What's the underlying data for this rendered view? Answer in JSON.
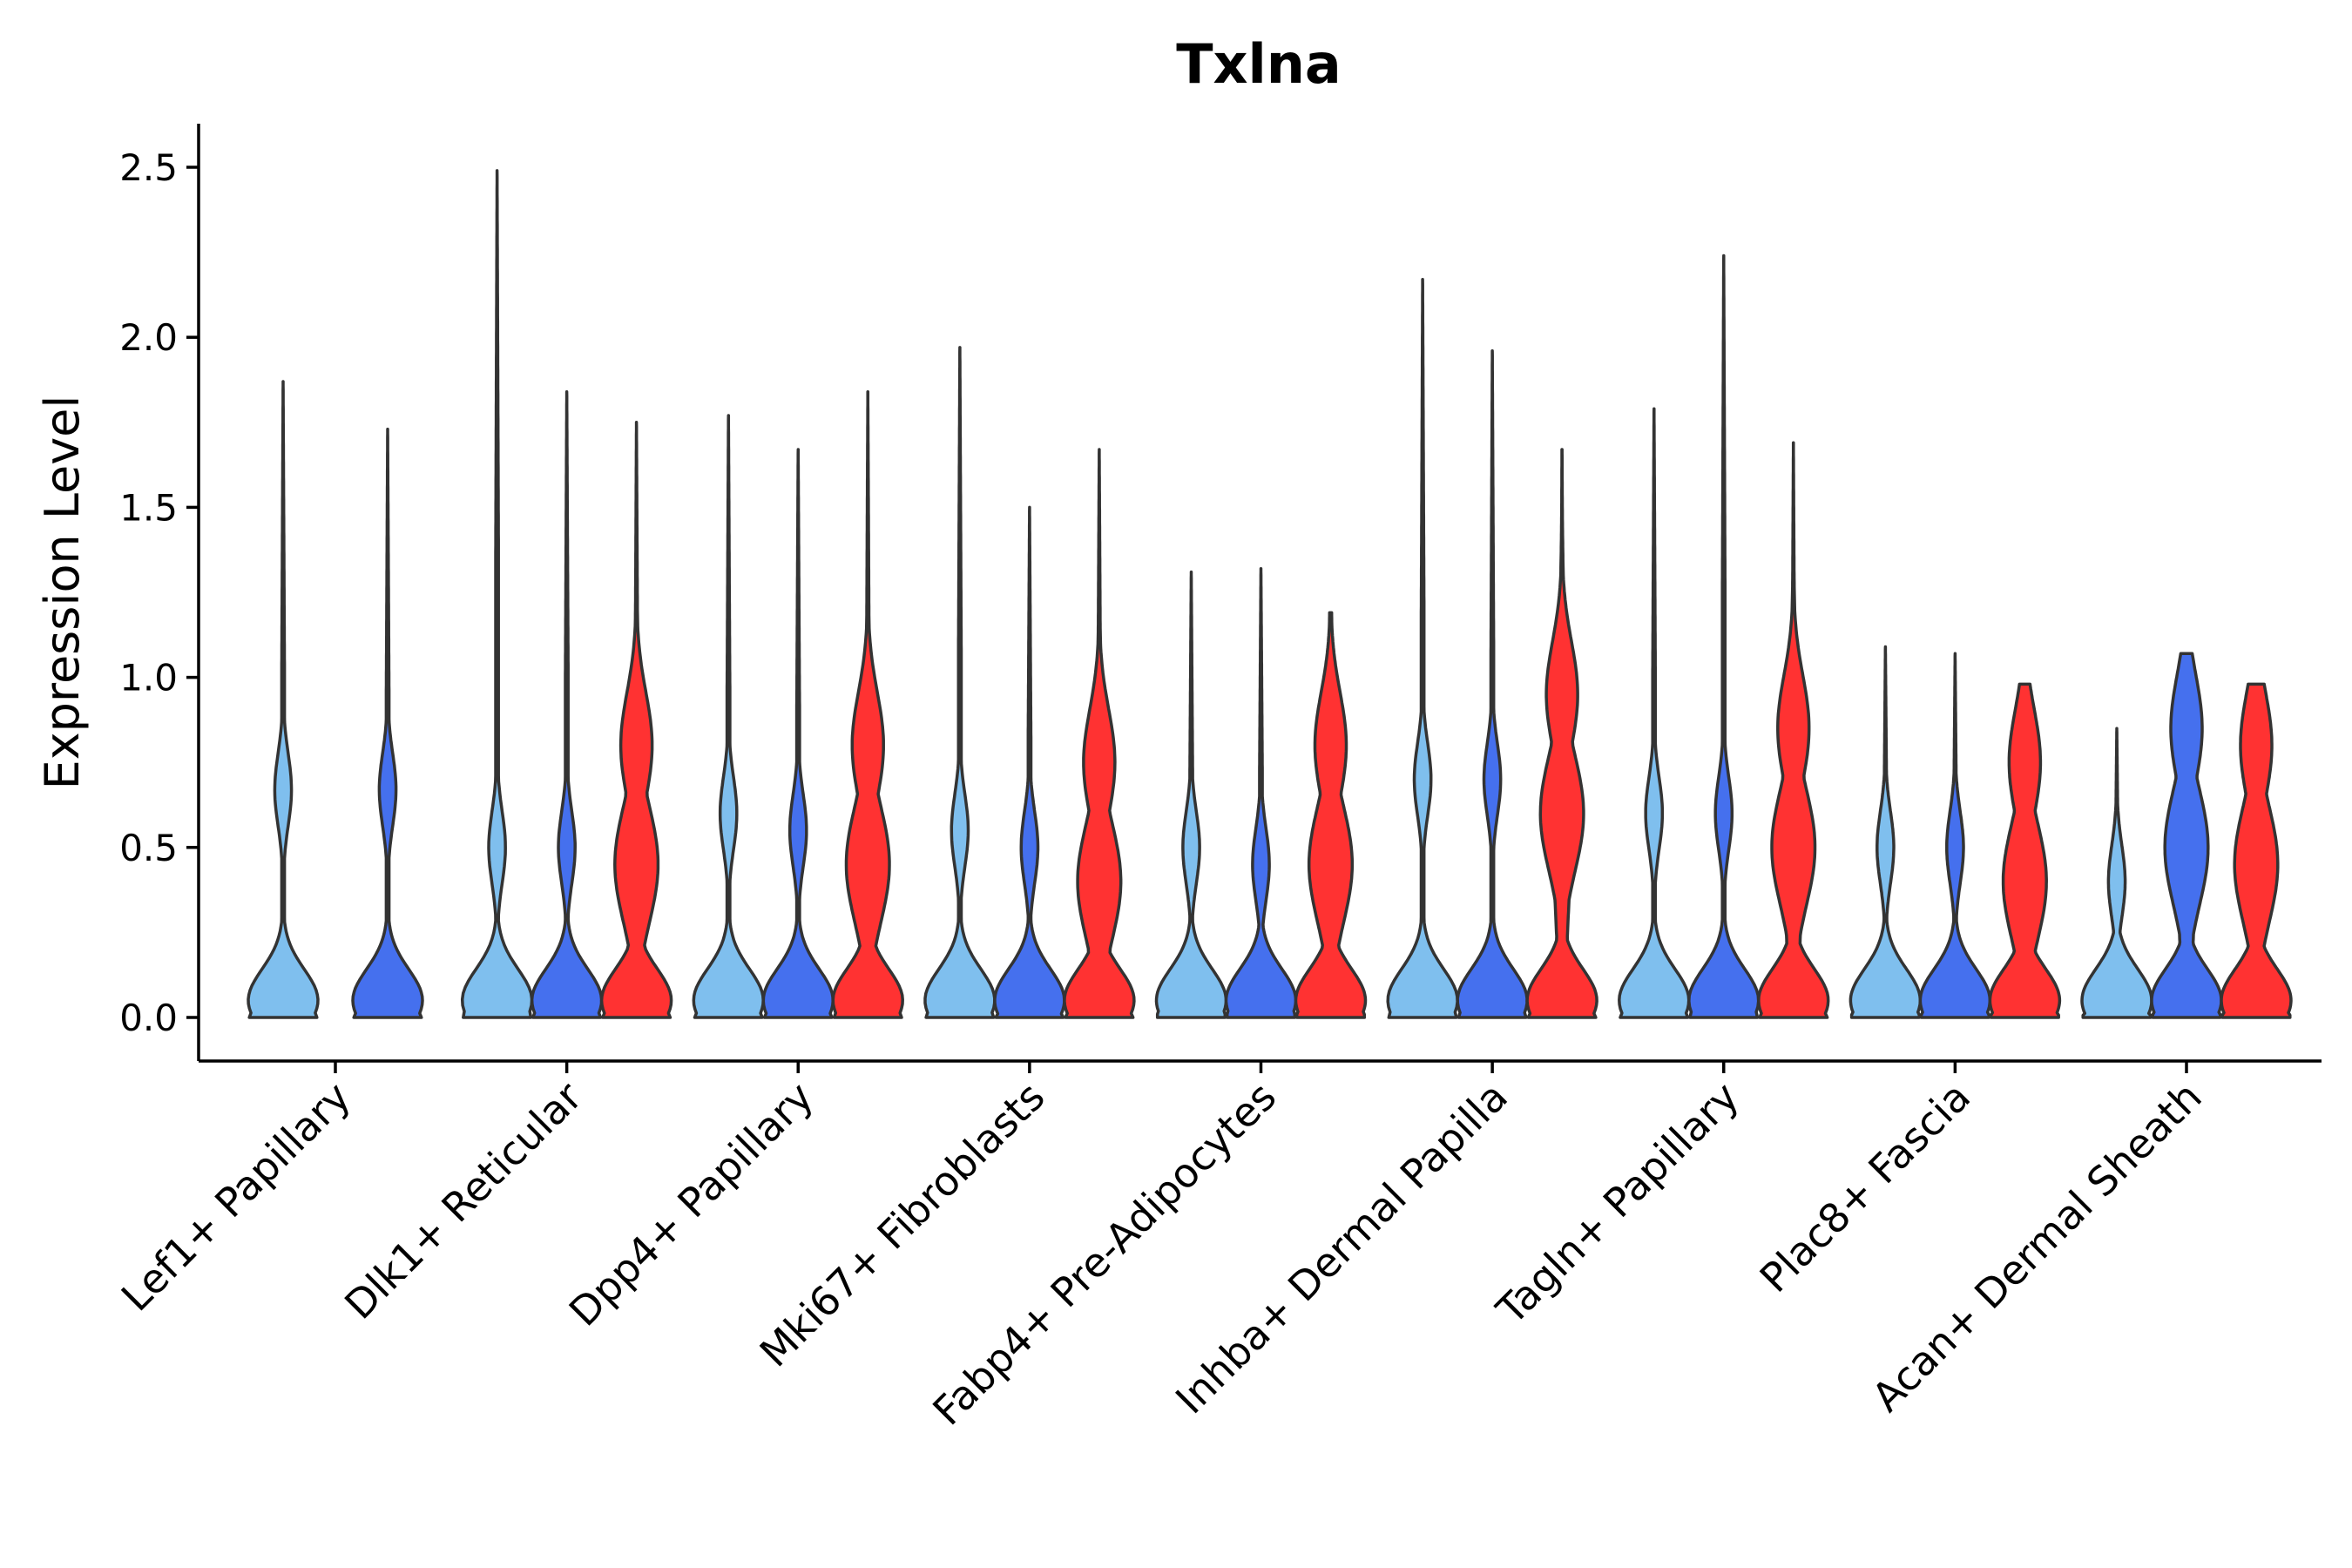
{
  "chart_data": {
    "type": "violin",
    "title": "Txlna",
    "xlabel": "",
    "ylabel": "Expression Level",
    "ylim": [
      0,
      2.5
    ],
    "yticks": [
      "0.0",
      "0.5",
      "1.0",
      "1.5",
      "2.0",
      "2.5"
    ],
    "ytick_values": [
      0,
      0.5,
      1.0,
      1.5,
      2.0,
      2.5
    ],
    "group_colors": [
      "#7fbfee",
      "#4570ee",
      "#ff3232"
    ],
    "categories": [
      {
        "label": "Lef1+ Papillary",
        "violins": [
          {
            "group": 0,
            "max": 1.87,
            "shape": "bimodal",
            "mode": 0.67
          },
          {
            "group": 1,
            "max": 1.73,
            "shape": "bimodal",
            "mode": 0.67
          }
        ]
      },
      {
        "label": "Dlk1+ Reticular",
        "violins": [
          {
            "group": 0,
            "max": 2.49,
            "shape": "bimodal",
            "mode": 0.5
          },
          {
            "group": 1,
            "max": 1.84,
            "shape": "bimodal",
            "mode": 0.5
          },
          {
            "group": 2,
            "max": 1.75,
            "shape": "wide",
            "mode": 0.45
          }
        ]
      },
      {
        "label": "Dpp4+ Papillary",
        "violins": [
          {
            "group": 0,
            "max": 1.77,
            "shape": "bimodal",
            "mode": 0.6
          },
          {
            "group": 1,
            "max": 1.67,
            "shape": "bimodal",
            "mode": 0.55
          },
          {
            "group": 2,
            "max": 1.84,
            "shape": "wide",
            "mode": 0.45
          }
        ]
      },
      {
        "label": "Mki67+ Fibroblasts",
        "violins": [
          {
            "group": 0,
            "max": 1.97,
            "shape": "bimodal",
            "mode": 0.55
          },
          {
            "group": 1,
            "max": 1.5,
            "shape": "bimodal",
            "mode": 0.5
          },
          {
            "group": 2,
            "max": 1.67,
            "shape": "wide",
            "mode": 0.4
          }
        ]
      },
      {
        "label": "Fabp4+ Pre-Adipocytes",
        "violins": [
          {
            "group": 0,
            "max": 1.31,
            "shape": "bimodal",
            "mode": 0.5
          },
          {
            "group": 1,
            "max": 1.32,
            "shape": "bimodal",
            "mode": 0.45
          },
          {
            "group": 2,
            "max": 1.19,
            "shape": "wide",
            "mode": 0.45
          }
        ]
      },
      {
        "label": "Inhba+ Dermal Papilla",
        "violins": [
          {
            "group": 0,
            "max": 2.17,
            "shape": "bimodal",
            "mode": 0.7
          },
          {
            "group": 1,
            "max": 1.96,
            "shape": "bimodal",
            "mode": 0.7
          },
          {
            "group": 2,
            "max": 1.67,
            "shape": "wide",
            "mode": 0.6
          }
        ]
      },
      {
        "label": "Tagln+ Papillary",
        "violins": [
          {
            "group": 0,
            "max": 1.79,
            "shape": "bimodal",
            "mode": 0.6
          },
          {
            "group": 1,
            "max": 2.24,
            "shape": "bimodal",
            "mode": 0.6
          },
          {
            "group": 2,
            "max": 1.69,
            "shape": "wide",
            "mode": 0.5
          }
        ]
      },
      {
        "label": "Plac8+ Fascia",
        "violins": [
          {
            "group": 0,
            "max": 1.09,
            "shape": "bimodal",
            "mode": 0.5
          },
          {
            "group": 1,
            "max": 1.07,
            "shape": "bimodal",
            "mode": 0.5
          },
          {
            "group": 2,
            "max": 0.98,
            "shape": "wide",
            "mode": 0.4
          }
        ]
      },
      {
        "label": "Acan+ Dermal Sheath",
        "violins": [
          {
            "group": 0,
            "max": 0.85,
            "shape": "bimodal",
            "mode": 0.4
          },
          {
            "group": 1,
            "max": 1.07,
            "shape": "wide",
            "mode": 0.5
          },
          {
            "group": 2,
            "max": 0.98,
            "shape": "wide",
            "mode": 0.45
          }
        ]
      }
    ]
  }
}
